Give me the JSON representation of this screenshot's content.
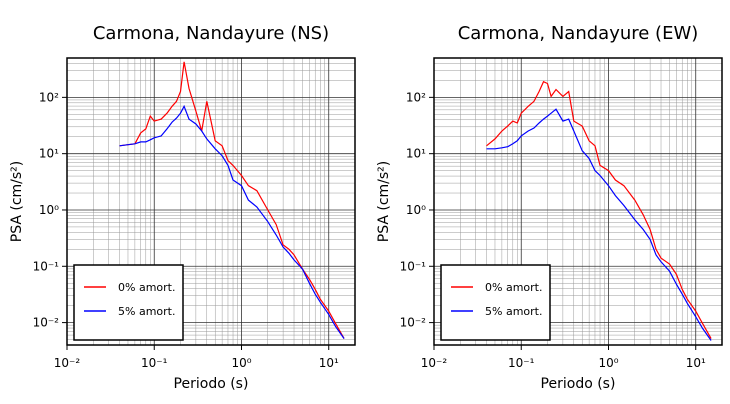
{
  "chart_data": [
    {
      "type": "line",
      "title": "Carmona, Nandayure (NS)",
      "xlabel": "Periodo (s)",
      "ylabel": "PSA (cm/s²)",
      "xscale": "log",
      "yscale": "log",
      "grid": true,
      "minor_grid": true,
      "legend": "lower left",
      "xlim": [
        0.01,
        20
      ],
      "ylim": [
        0.004,
        500
      ],
      "xticks": [
        {
          "value": 0.01,
          "label": "10⁻²"
        },
        {
          "value": 0.1,
          "label": "10⁻¹"
        },
        {
          "value": 1,
          "label": "10⁰"
        },
        {
          "value": 10,
          "label": "10¹"
        }
      ],
      "yticks": [
        {
          "value": 0.01,
          "label": "10⁻²"
        },
        {
          "value": 0.1,
          "label": "10⁻¹"
        },
        {
          "value": 1,
          "label": "10⁰"
        },
        {
          "value": 10,
          "label": "10¹"
        },
        {
          "value": 100,
          "label": "10²"
        }
      ],
      "x": [
        0.04,
        0.05,
        0.06,
        0.07,
        0.08,
        0.09,
        0.1,
        0.12,
        0.14,
        0.16,
        0.18,
        0.2,
        0.22,
        0.25,
        0.3,
        0.35,
        0.4,
        0.5,
        0.6,
        0.7,
        0.8,
        1,
        1.2,
        1.5,
        2,
        2.5,
        3,
        3.5,
        4,
        5,
        6,
        7,
        8,
        10,
        12,
        15
      ],
      "series": [
        {
          "name": "0% amort.",
          "color": "#ff0000",
          "values": [
            13.8,
            14.4,
            15.0,
            23.4,
            27.5,
            46.4,
            37.9,
            41.1,
            52.4,
            69.5,
            85.1,
            127,
            428,
            144,
            56.8,
            25.3,
            85.1,
            16.9,
            13.8,
            7.5,
            6.2,
            4.1,
            2.7,
            2.2,
            1.0,
            0.55,
            0.24,
            0.2,
            0.16,
            0.089,
            0.059,
            0.039,
            0.026,
            0.016,
            0.0096,
            0.0052
          ]
        },
        {
          "name": "5% amort.",
          "color": "#0000ff",
          "values": [
            13.8,
            14.4,
            15.0,
            16.2,
            16.2,
            17.6,
            19.1,
            20.7,
            27.5,
            36.4,
            42.8,
            52.4,
            69.5,
            41.1,
            33.6,
            25.3,
            18.3,
            12.2,
            9.2,
            6.2,
            3.4,
            2.7,
            1.5,
            1.13,
            0.62,
            0.36,
            0.22,
            0.17,
            0.13,
            0.089,
            0.05,
            0.032,
            0.023,
            0.014,
            0.0085,
            0.0052
          ]
        }
      ]
    },
    {
      "type": "line",
      "title": "Carmona, Nandayure (EW)",
      "xlabel": "Periodo (s)",
      "ylabel": "PSA (cm/s²)",
      "xscale": "log",
      "yscale": "log",
      "grid": true,
      "minor_grid": true,
      "legend": "lower left",
      "xlim": [
        0.01,
        20
      ],
      "ylim": [
        0.004,
        500
      ],
      "xticks": [
        {
          "value": 0.01,
          "label": "10⁻²"
        },
        {
          "value": 0.1,
          "label": "10⁻¹"
        },
        {
          "value": 1,
          "label": "10⁰"
        },
        {
          "value": 10,
          "label": "10¹"
        }
      ],
      "yticks": [
        {
          "value": 0.01,
          "label": "10⁻²"
        },
        {
          "value": 0.1,
          "label": "10⁻¹"
        },
        {
          "value": 1,
          "label": "10⁰"
        },
        {
          "value": 10,
          "label": "10¹"
        },
        {
          "value": 100,
          "label": "10²"
        }
      ],
      "x": [
        0.04,
        0.05,
        0.06,
        0.07,
        0.08,
        0.09,
        0.1,
        0.12,
        0.14,
        0.16,
        0.18,
        0.2,
        0.22,
        0.25,
        0.3,
        0.35,
        0.4,
        0.5,
        0.6,
        0.7,
        0.8,
        1,
        1.2,
        1.5,
        2,
        2.5,
        3,
        3.5,
        4,
        5,
        6,
        7,
        8,
        10,
        12,
        15
      ],
      "series": [
        {
          "name": "0% amort.",
          "color": "#ff0000",
          "values": [
            13.8,
            18.3,
            25.3,
            31.0,
            37.9,
            35.0,
            52.4,
            69.5,
            85.1,
            127,
            190,
            176,
            104,
            138,
            104,
            127,
            37.9,
            31.0,
            16.9,
            13.8,
            6.2,
            5.0,
            3.4,
            2.7,
            1.5,
            0.82,
            0.45,
            0.2,
            0.14,
            0.11,
            0.072,
            0.039,
            0.026,
            0.016,
            0.0096,
            0.0052
          ]
        },
        {
          "name": "5% amort.",
          "color": "#0000ff",
          "values": [
            12.2,
            12.2,
            12.7,
            13.3,
            15.0,
            16.9,
            20.7,
            25.3,
            28.6,
            35.0,
            41.1,
            46.4,
            52.4,
            61.6,
            37.9,
            41.1,
            25.3,
            11.3,
            8.2,
            5.0,
            4.1,
            2.7,
            1.8,
            1.2,
            0.67,
            0.45,
            0.3,
            0.16,
            0.12,
            0.082,
            0.048,
            0.032,
            0.022,
            0.0127,
            0.0079,
            0.0048
          ]
        }
      ]
    }
  ]
}
